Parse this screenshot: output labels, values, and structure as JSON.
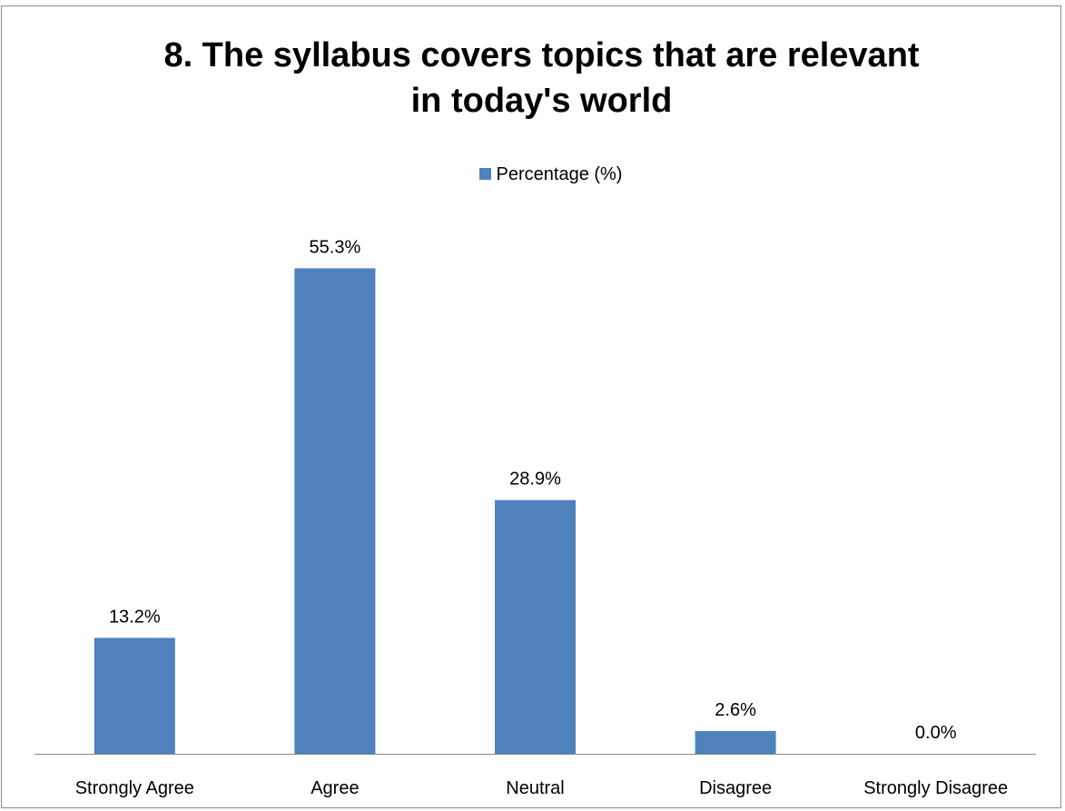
{
  "chart_data": {
    "type": "bar",
    "title": "8. The syllabus covers topics that are relevant in today's world",
    "title_lines": [
      "8. The syllabus covers topics that are relevant",
      "in today's world"
    ],
    "categories": [
      "Strongly Agree",
      "Agree",
      "Neutral",
      "Disagree",
      "Strongly Disagree"
    ],
    "series": [
      {
        "name": "Percentage (%)",
        "values": [
          13.2,
          55.3,
          28.9,
          2.6,
          0.0
        ],
        "data_labels": [
          "13.2%",
          "55.3%",
          "28.9%",
          "2.6%",
          "0.0%"
        ],
        "color": "#4F81BD"
      }
    ],
    "ylim": [
      0,
      60
    ],
    "grid": false,
    "legend_position": "top-center",
    "xlabel": "",
    "ylabel": ""
  }
}
